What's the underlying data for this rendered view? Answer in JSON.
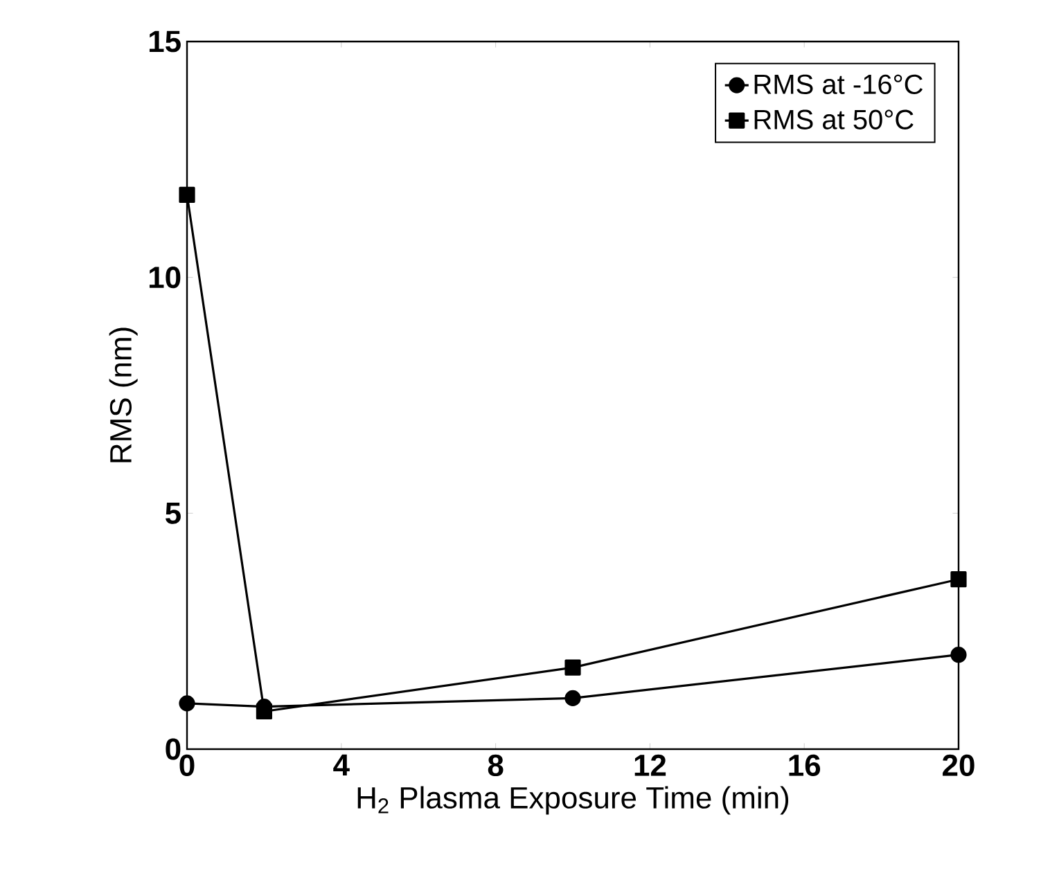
{
  "chart_data": {
    "type": "line",
    "xlabel": "H$_{2}$ Plasma Exposure Time (min)",
    "ylabel": "RMS (nm)",
    "x": [
      0,
      2,
      10,
      20
    ],
    "series": [
      {
        "name": "RMS at -16°C",
        "color": "#000000",
        "marker": "circle",
        "values": [
          0.97,
          0.9,
          1.08,
          2.0
        ]
      },
      {
        "name": "RMS at 50°C",
        "color": "#000000",
        "marker": "square",
        "values": [
          11.75,
          0.8,
          1.73,
          3.6
        ]
      }
    ],
    "xlim": [
      0,
      20
    ],
    "ylim": [
      0,
      15
    ],
    "xticks": [
      0,
      4,
      8,
      12,
      16,
      20
    ],
    "yticks": [
      0,
      5,
      10,
      15
    ],
    "legend": "top right",
    "grid": false,
    "line_style": "solid"
  }
}
